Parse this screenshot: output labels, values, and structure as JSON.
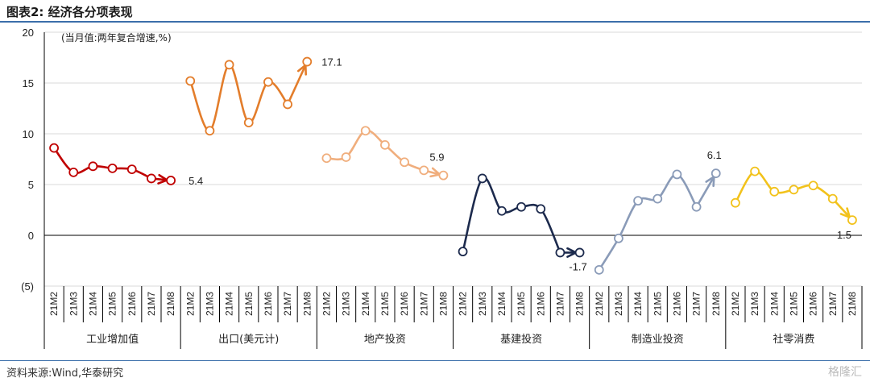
{
  "header": {
    "title": "图表2: 经济各分项表现"
  },
  "footer": {
    "source": "资料来源:Wind,华泰研究",
    "watermark": "格隆汇"
  },
  "chart_data": {
    "type": "line",
    "note": "(当月值:两年复合增速,%)",
    "ylim": [
      -5,
      20
    ],
    "yticks": [
      20,
      15,
      10,
      5,
      0,
      -5
    ],
    "ytick_labels": [
      "20",
      "15",
      "10",
      "5",
      "0",
      "(5)"
    ],
    "grid": true,
    "months": [
      "21M2",
      "21M3",
      "21M4",
      "21M5",
      "21M6",
      "21M7",
      "21M8"
    ],
    "series": [
      {
        "name": "工业增加值",
        "color": "#c00000",
        "values": [
          8.6,
          6.2,
          6.8,
          6.6,
          6.5,
          5.6,
          5.4
        ],
        "end_label": "5.4"
      },
      {
        "name": "出口(美元计)",
        "color": "#e37d2b",
        "values": [
          15.2,
          10.3,
          16.8,
          11.1,
          15.1,
          12.9,
          17.1
        ],
        "end_label": "17.1"
      },
      {
        "name": "地产投资",
        "color": "#f0ae7d",
        "values": [
          7.6,
          7.7,
          10.3,
          8.9,
          7.2,
          6.4,
          5.9
        ],
        "end_label": "5.9"
      },
      {
        "name": "基建投资",
        "color": "#1c2a4d",
        "values": [
          -1.6,
          5.6,
          2.4,
          2.8,
          2.6,
          -1.7,
          -1.7
        ],
        "end_label": "-1.7"
      },
      {
        "name": "制造业投资",
        "color": "#8a9bb8",
        "values": [
          -3.4,
          -0.3,
          3.4,
          3.6,
          6.0,
          2.8,
          6.1
        ],
        "end_label": "6.1"
      },
      {
        "name": "社零消费",
        "color": "#f2c21b",
        "values": [
          3.2,
          6.3,
          4.3,
          4.5,
          4.9,
          3.6,
          1.5
        ],
        "end_label": "1.5"
      }
    ]
  }
}
